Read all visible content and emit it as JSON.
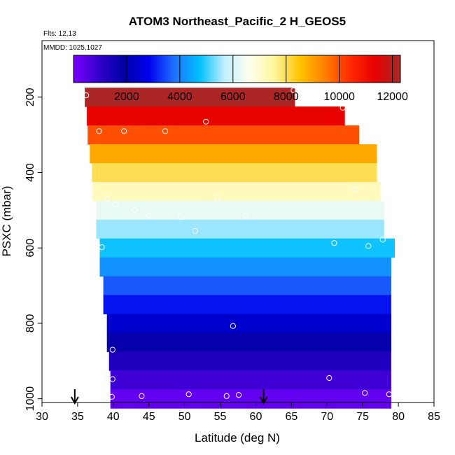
{
  "chart_data": {
    "type": "heatmap",
    "title": "ATOM3 Northeast_Pacific_2 H_GEOS5",
    "annotations": {
      "flights": "Flts: 12,13",
      "mmdd": "MMDD: 1025,1027"
    },
    "xlabel": "Latitude (deg N)",
    "ylabel": "PSXC (mbar)",
    "xlim": [
      30,
      85
    ],
    "ylim": [
      1010,
      50
    ],
    "x_ticks": [
      "30",
      "35",
      "40",
      "45",
      "50",
      "55",
      "60",
      "65",
      "70",
      "75",
      "80",
      "85"
    ],
    "y_ticks": [
      "200",
      "400",
      "600",
      "800",
      "1000"
    ],
    "colorbar": {
      "min": 0,
      "max": 12300,
      "tick_values": [
        2000,
        4000,
        6000,
        8000,
        10000,
        12000
      ],
      "tick_labels": [
        "2000",
        "4000",
        "6000",
        "8000",
        "10000",
        "12000"
      ],
      "colors": [
        "#7a00ff",
        "#3300cc",
        "#0000a8",
        "#0000ee",
        "#1f6fff",
        "#00bfff",
        "#bfefff",
        "#ffffee",
        "#fff59a",
        "#ffc300",
        "#ff8000",
        "#ff2a00",
        "#e60000",
        "#a52a2a"
      ]
    },
    "rows": [
      {
        "pressure": 200,
        "lat_start": 36.0,
        "lat_end": 65.5,
        "value": 12200
      },
      {
        "pressure": 250,
        "lat_start": 36.3,
        "lat_end": 72.5,
        "value": 11300
      },
      {
        "pressure": 300,
        "lat_start": 36.4,
        "lat_end": 74.5,
        "value": 10000
      },
      {
        "pressure": 350,
        "lat_start": 36.7,
        "lat_end": 77.0,
        "value": 8900
      },
      {
        "pressure": 400,
        "lat_start": 37.0,
        "lat_end": 77.0,
        "value": 8000
      },
      {
        "pressure": 450,
        "lat_start": 37.1,
        "lat_end": 77.5,
        "value": 7200
      },
      {
        "pressure": 500,
        "lat_start": 37.6,
        "lat_end": 78.0,
        "value": 6300
      },
      {
        "pressure": 550,
        "lat_start": 37.6,
        "lat_end": 78.0,
        "value": 5500
      },
      {
        "pressure": 600,
        "lat_start": 38.1,
        "lat_end": 79.5,
        "value": 4800
      },
      {
        "pressure": 650,
        "lat_start": 38.1,
        "lat_end": 79.0,
        "value": 4200
      },
      {
        "pressure": 700,
        "lat_start": 38.6,
        "lat_end": 79.0,
        "value": 3600
      },
      {
        "pressure": 750,
        "lat_start": 38.6,
        "lat_end": 79.0,
        "value": 3000
      },
      {
        "pressure": 800,
        "lat_start": 39.1,
        "lat_end": 79.0,
        "value": 2400
      },
      {
        "pressure": 850,
        "lat_start": 39.1,
        "lat_end": 79.0,
        "value": 1800
      },
      {
        "pressure": 900,
        "lat_start": 39.4,
        "lat_end": 79.0,
        "value": 1300
      },
      {
        "pressure": 950,
        "lat_start": 39.6,
        "lat_end": 79.0,
        "value": 800
      },
      {
        "pressure": 1000,
        "lat_start": 39.6,
        "lat_end": 79.0,
        "value": 300
      }
    ],
    "observations": [
      {
        "lat": 36.2,
        "p": 195
      },
      {
        "lat": 65.3,
        "p": 182
      },
      {
        "lat": 72.2,
        "p": 228
      },
      {
        "lat": 53.0,
        "p": 265
      },
      {
        "lat": 38.0,
        "p": 290
      },
      {
        "lat": 41.5,
        "p": 290
      },
      {
        "lat": 47.3,
        "p": 290
      },
      {
        "lat": 74.0,
        "p": 445
      },
      {
        "lat": 39.2,
        "p": 470
      },
      {
        "lat": 40.3,
        "p": 485
      },
      {
        "lat": 54.6,
        "p": 465
      },
      {
        "lat": 43.0,
        "p": 500
      },
      {
        "lat": 45.0,
        "p": 515
      },
      {
        "lat": 49.5,
        "p": 518
      },
      {
        "lat": 58.6,
        "p": 515
      },
      {
        "lat": 51.5,
        "p": 555
      },
      {
        "lat": 38.4,
        "p": 598
      },
      {
        "lat": 71.0,
        "p": 587
      },
      {
        "lat": 75.8,
        "p": 595
      },
      {
        "lat": 77.8,
        "p": 578
      },
      {
        "lat": 56.8,
        "p": 807
      },
      {
        "lat": 39.9,
        "p": 870
      },
      {
        "lat": 39.9,
        "p": 948
      },
      {
        "lat": 70.3,
        "p": 945
      },
      {
        "lat": 39.8,
        "p": 995
      },
      {
        "lat": 44.0,
        "p": 993
      },
      {
        "lat": 50.6,
        "p": 988
      },
      {
        "lat": 55.9,
        "p": 993
      },
      {
        "lat": 57.6,
        "p": 990
      },
      {
        "lat": 75.3,
        "p": 985
      },
      {
        "lat": 78.7,
        "p": 988
      }
    ],
    "markers": [
      {
        "type": "arrow-down",
        "lat": 34.6
      },
      {
        "type": "arrow-down",
        "lat": 61.1
      }
    ]
  }
}
